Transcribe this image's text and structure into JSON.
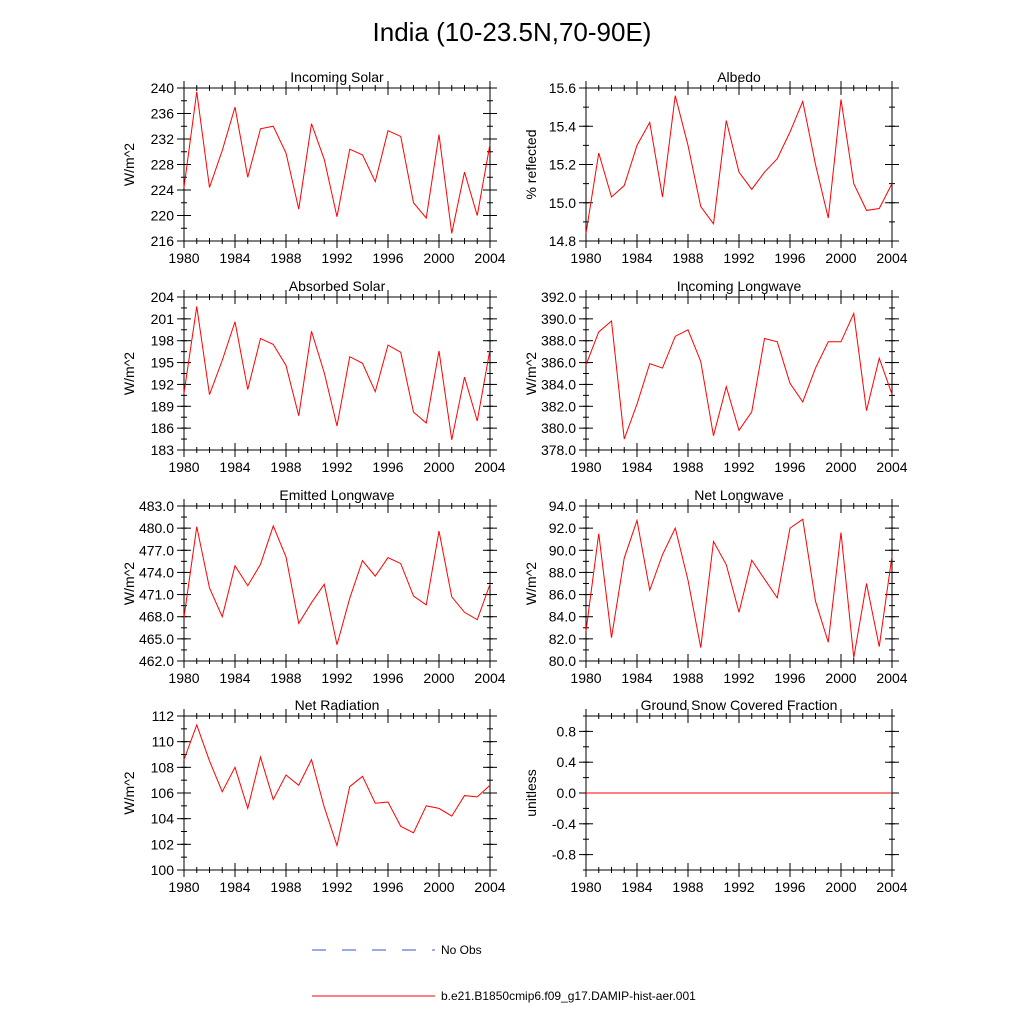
{
  "figure": {
    "title": "India (10-23.5N,70-90E)",
    "legend": {
      "obs_label": "No Obs",
      "model_label": "b.e21.B1850cmip6.f09_g17.DAMIP-hist-aer.001"
    },
    "colors": {
      "model": "#ff0000",
      "obs": "#0000cc",
      "axis": "#000000"
    }
  },
  "chart_data": [
    {
      "type": "line",
      "title": "Incoming Solar",
      "ylabel": "W/m^2",
      "xlim": [
        1980,
        2004
      ],
      "ylim": [
        216,
        240
      ],
      "yticks": [
        "216",
        "220",
        "224",
        "228",
        "232",
        "236",
        "240"
      ],
      "xticks": [
        "1980",
        "1984",
        "1988",
        "1992",
        "1996",
        "2000",
        "2004"
      ],
      "x": [
        1980,
        1981,
        1982,
        1983,
        1984,
        1985,
        1986,
        1987,
        1988,
        1989,
        1990,
        1991,
        1992,
        1993,
        1994,
        1995,
        1996,
        1997,
        1998,
        1999,
        2000,
        2001,
        2002,
        2003,
        2004
      ],
      "series": [
        {
          "values": [
            224.4,
            239.4,
            224.4,
            230.2,
            237.0,
            226.0,
            233.6,
            234.0,
            229.8,
            221.0,
            234.4,
            228.8,
            219.8,
            230.4,
            229.5,
            225.3,
            233.3,
            232.4,
            222.0,
            219.6,
            232.7,
            217.2,
            226.8,
            220.0,
            231.2
          ]
        }
      ]
    },
    {
      "type": "line",
      "title": "Albedo",
      "ylabel": "% reflected",
      "xlim": [
        1980,
        2004
      ],
      "ylim": [
        14.8,
        15.6
      ],
      "yticks": [
        "14.8",
        "15.0",
        "15.2",
        "15.4",
        "15.6"
      ],
      "xticks": [
        "1980",
        "1984",
        "1988",
        "1992",
        "1996",
        "2000",
        "2004"
      ],
      "x": [
        1980,
        1981,
        1982,
        1983,
        1984,
        1985,
        1986,
        1987,
        1988,
        1989,
        1990,
        1991,
        1992,
        1993,
        1994,
        1995,
        1996,
        1997,
        1998,
        1999,
        2000,
        2001,
        2002,
        2003,
        2004
      ],
      "series": [
        {
          "values": [
            14.84,
            15.26,
            15.03,
            15.09,
            15.3,
            15.42,
            15.03,
            15.56,
            15.3,
            14.98,
            14.89,
            15.43,
            15.16,
            15.07,
            15.16,
            15.23,
            15.37,
            15.53,
            15.2,
            14.92,
            15.54,
            15.1,
            14.96,
            14.97,
            15.1
          ]
        }
      ]
    },
    {
      "type": "line",
      "title": "Absorbed Solar",
      "ylabel": "W/m^2",
      "xlim": [
        1980,
        2004
      ],
      "ylim": [
        183,
        204
      ],
      "yticks": [
        "183",
        "186",
        "189",
        "192",
        "195",
        "198",
        "201",
        "204"
      ],
      "xticks": [
        "1980",
        "1984",
        "1988",
        "1992",
        "1996",
        "2000",
        "2004"
      ],
      "x": [
        1980,
        1981,
        1982,
        1983,
        1984,
        1985,
        1986,
        1987,
        1988,
        1989,
        1990,
        1991,
        1992,
        1993,
        1994,
        1995,
        1996,
        1997,
        1998,
        1999,
        2000,
        2001,
        2002,
        2003,
        2004
      ],
      "series": [
        {
          "values": [
            190.8,
            202.7,
            190.6,
            195.3,
            200.6,
            191.3,
            198.3,
            197.5,
            194.6,
            187.7,
            199.3,
            193.6,
            186.3,
            195.8,
            194.9,
            191.0,
            197.4,
            196.4,
            188.2,
            186.7,
            196.6,
            184.4,
            193.0,
            187.0,
            196.8
          ]
        }
      ]
    },
    {
      "type": "line",
      "title": "Incoming Longwave",
      "ylabel": "W/m^2",
      "xlim": [
        1980,
        2004
      ],
      "ylim": [
        378.0,
        392.0
      ],
      "yticks": [
        "378.0",
        "380.0",
        "382.0",
        "384.0",
        "386.0",
        "388.0",
        "390.0",
        "392.0"
      ],
      "xticks": [
        "1980",
        "1984",
        "1988",
        "1992",
        "1996",
        "2000",
        "2004"
      ],
      "x": [
        1980,
        1981,
        1982,
        1983,
        1984,
        1985,
        1986,
        1987,
        1988,
        1989,
        1990,
        1991,
        1992,
        1993,
        1994,
        1995,
        1996,
        1997,
        1998,
        1999,
        2000,
        2001,
        2002,
        2003,
        2004
      ],
      "series": [
        {
          "values": [
            385.8,
            388.8,
            389.8,
            379.0,
            382.2,
            385.9,
            385.5,
            388.4,
            389.0,
            386.1,
            379.3,
            383.8,
            379.8,
            381.5,
            388.2,
            387.9,
            384.1,
            382.4,
            385.5,
            387.9,
            387.9,
            390.5,
            381.6,
            386.4,
            383.1
          ]
        }
      ]
    },
    {
      "type": "line",
      "title": "Emitted Longwave",
      "ylabel": "W/m^2",
      "xlim": [
        1980,
        2004
      ],
      "ylim": [
        462.0,
        483.0
      ],
      "yticks": [
        "462.0",
        "465.0",
        "468.0",
        "471.0",
        "474.0",
        "477.0",
        "480.0",
        "483.0"
      ],
      "xticks": [
        "1980",
        "1984",
        "1988",
        "1992",
        "1996",
        "2000",
        "2004"
      ],
      "x": [
        1980,
        1981,
        1982,
        1983,
        1984,
        1985,
        1986,
        1987,
        1988,
        1989,
        1990,
        1991,
        1992,
        1993,
        1994,
        1995,
        1996,
        1997,
        1998,
        1999,
        2000,
        2001,
        2002,
        2003,
        2004
      ],
      "series": [
        {
          "values": [
            467.9,
            480.2,
            471.9,
            468.0,
            474.9,
            472.2,
            475.1,
            480.3,
            476.1,
            467.1,
            469.9,
            472.4,
            464.2,
            470.5,
            475.6,
            473.5,
            476.0,
            475.2,
            470.8,
            469.6,
            479.6,
            470.7,
            468.6,
            467.6,
            472.4
          ]
        }
      ]
    },
    {
      "type": "line",
      "title": "Net Longwave",
      "ylabel": "W/m^2",
      "xlim": [
        1980,
        2004
      ],
      "ylim": [
        80.0,
        94.0
      ],
      "yticks": [
        "80.0",
        "82.0",
        "84.0",
        "86.0",
        "88.0",
        "90.0",
        "92.0",
        "94.0"
      ],
      "xticks": [
        "1980",
        "1984",
        "1988",
        "1992",
        "1996",
        "2000",
        "2004"
      ],
      "x": [
        1980,
        1981,
        1982,
        1983,
        1984,
        1985,
        1986,
        1987,
        1988,
        1989,
        1990,
        1991,
        1992,
        1993,
        1994,
        1995,
        1996,
        1997,
        1998,
        1999,
        2000,
        2001,
        2002,
        2003,
        2004
      ],
      "series": [
        {
          "values": [
            82.7,
            91.5,
            82.1,
            89.3,
            92.7,
            86.4,
            89.6,
            92.0,
            87.3,
            81.2,
            90.8,
            88.7,
            84.4,
            89.1,
            87.4,
            85.7,
            92.0,
            92.8,
            85.4,
            81.7,
            91.6,
            80.3,
            87.0,
            81.3,
            89.5
          ]
        }
      ]
    },
    {
      "type": "line",
      "title": "Net Radiation",
      "ylabel": "W/m^2",
      "xlim": [
        1980,
        2004
      ],
      "ylim": [
        100,
        112
      ],
      "yticks": [
        "100",
        "102",
        "104",
        "106",
        "108",
        "110",
        "112"
      ],
      "xticks": [
        "1980",
        "1984",
        "1988",
        "1992",
        "1996",
        "2000",
        "2004"
      ],
      "x": [
        1980,
        1981,
        1982,
        1983,
        1984,
        1985,
        1986,
        1987,
        1988,
        1989,
        1990,
        1991,
        1992,
        1993,
        1994,
        1995,
        1996,
        1997,
        1998,
        1999,
        2000,
        2001,
        2002,
        2003,
        2004
      ],
      "series": [
        {
          "values": [
            108.6,
            111.3,
            108.5,
            106.1,
            108.0,
            104.8,
            108.8,
            105.5,
            107.4,
            106.6,
            108.6,
            104.9,
            101.9,
            106.5,
            107.3,
            105.2,
            105.3,
            103.4,
            102.9,
            105.0,
            104.8,
            104.2,
            105.8,
            105.7,
            106.6
          ]
        }
      ]
    },
    {
      "type": "line",
      "title": "Ground Snow Covered Fraction",
      "ylabel": "unitless",
      "xlim": [
        1980,
        2004
      ],
      "ylim": [
        -1.0,
        1.0
      ],
      "yticks": [
        "-0.8",
        "-0.4",
        "0.0",
        "0.4",
        "0.8"
      ],
      "ytick_values": [
        -0.8,
        -0.4,
        0.0,
        0.4,
        0.8
      ],
      "xticks": [
        "1980",
        "1984",
        "1988",
        "1992",
        "1996",
        "2000",
        "2004"
      ],
      "x": [
        1980,
        1981,
        1982,
        1983,
        1984,
        1985,
        1986,
        1987,
        1988,
        1989,
        1990,
        1991,
        1992,
        1993,
        1994,
        1995,
        1996,
        1997,
        1998,
        1999,
        2000,
        2001,
        2002,
        2003,
        2004
      ],
      "series": [
        {
          "values": [
            0,
            0,
            0,
            0,
            0,
            0,
            0,
            0,
            0,
            0,
            0,
            0,
            0,
            0,
            0,
            0,
            0,
            0,
            0,
            0,
            0,
            0,
            0,
            0,
            0
          ]
        }
      ]
    }
  ]
}
